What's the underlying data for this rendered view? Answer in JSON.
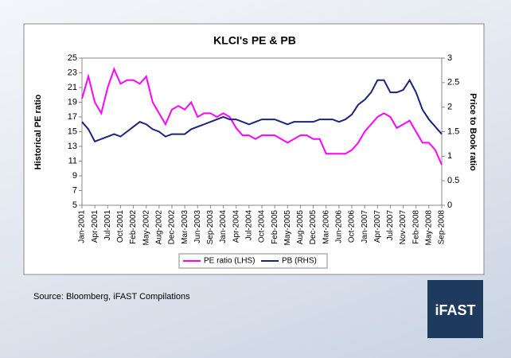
{
  "chart_data": {
    "type": "line",
    "title": "KLCI's PE & PB",
    "y_label": "Historical PE ratio",
    "y2_label": "Price to Book ratio",
    "categories": [
      "Jan-2001",
      null,
      "Apr-2001",
      null,
      "Jul-2001",
      null,
      "Oct-2001",
      null,
      "Feb-2002",
      null,
      "May-2002",
      null,
      "Aug-2002",
      null,
      "Dec-2002",
      null,
      "Mar-2003",
      null,
      "Jun-2003",
      null,
      "Sep-2003",
      null,
      "Jan-2004",
      null,
      "Apr-2004",
      null,
      "Jul-2004",
      null,
      "Oct-2004",
      null,
      "Feb-2005",
      null,
      "May-2005",
      null,
      "Aug-2005",
      null,
      "Dec-2005",
      null,
      "Mar-2006",
      null,
      "Jun-2006",
      null,
      "Oct-2006",
      null,
      "Jan-2007",
      null,
      "Apr-2007",
      null,
      "Jul-2007",
      null,
      "Nov-2007",
      null,
      "Feb-2008",
      null,
      "May-2008",
      null,
      "Sep-2008"
    ],
    "series": [
      {
        "name": "PE ratio (LHS)",
        "color": "#ff00ff",
        "axis": "y",
        "values": [
          19.5,
          22.5,
          19,
          17.5,
          21,
          23.5,
          21.5,
          22,
          22,
          21.5,
          22.5,
          19,
          17.5,
          16,
          18,
          18.5,
          18,
          19,
          17,
          17.5,
          17.5,
          17,
          17.5,
          17,
          15.5,
          14.5,
          14.5,
          14,
          14.5,
          14.5,
          14.5,
          14,
          13.5,
          14,
          14.5,
          14.5,
          14,
          14,
          12,
          12,
          12,
          12,
          12.5,
          13.5,
          15,
          16,
          17,
          17.5,
          17,
          15.5,
          16,
          16.5,
          15,
          13.5,
          13.5,
          12.5,
          10.5
        ]
      },
      {
        "name": "PB (RHS)",
        "color": "#1a237e",
        "axis": "y2",
        "values": [
          1.7,
          1.55,
          1.3,
          1.35,
          1.4,
          1.45,
          1.4,
          1.5,
          1.6,
          1.7,
          1.65,
          1.55,
          1.5,
          1.4,
          1.45,
          1.45,
          1.45,
          1.55,
          1.6,
          1.65,
          1.7,
          1.75,
          1.8,
          1.75,
          1.75,
          1.7,
          1.65,
          1.7,
          1.75,
          1.75,
          1.75,
          1.7,
          1.65,
          1.7,
          1.7,
          1.7,
          1.7,
          1.75,
          1.75,
          1.75,
          1.7,
          1.75,
          1.85,
          2.05,
          2.15,
          2.3,
          2.55,
          2.55,
          2.3,
          2.3,
          2.35,
          2.55,
          2.3,
          1.95,
          1.75,
          1.6,
          1.45
        ]
      }
    ],
    "ylim": [
      5,
      25
    ],
    "yticks": [
      5,
      7,
      9,
      11,
      13,
      15,
      17,
      19,
      21,
      23,
      25
    ],
    "y2lim": [
      0,
      3
    ],
    "y2ticks": [
      0,
      0.5,
      1,
      1.5,
      2,
      2.5,
      3
    ],
    "legend": "bottom"
  },
  "source": "Source: Bloomberg, iFAST Compilations",
  "logo": "iFAST"
}
